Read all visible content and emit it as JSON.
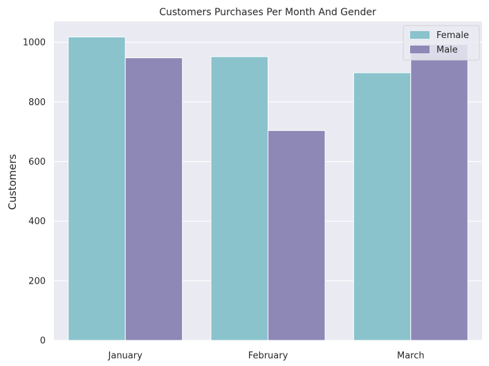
{
  "chart_data": {
    "type": "bar",
    "title": "Customers Purchases Per Month And Gender",
    "xlabel": "",
    "ylabel": "Customers",
    "categories": [
      "January",
      "February",
      "March"
    ],
    "series": [
      {
        "name": "Female",
        "values": [
          1018,
          952,
          898
        ],
        "color": "#8ac3cc"
      },
      {
        "name": "Male",
        "values": [
          948,
          704,
          993
        ],
        "color": "#8d88b6"
      }
    ],
    "ylim": [
      0,
      1070
    ],
    "yticks": [
      0,
      200,
      400,
      600,
      800,
      1000
    ],
    "grid": true,
    "legend": "top-right",
    "background": "#eaeaf2"
  }
}
